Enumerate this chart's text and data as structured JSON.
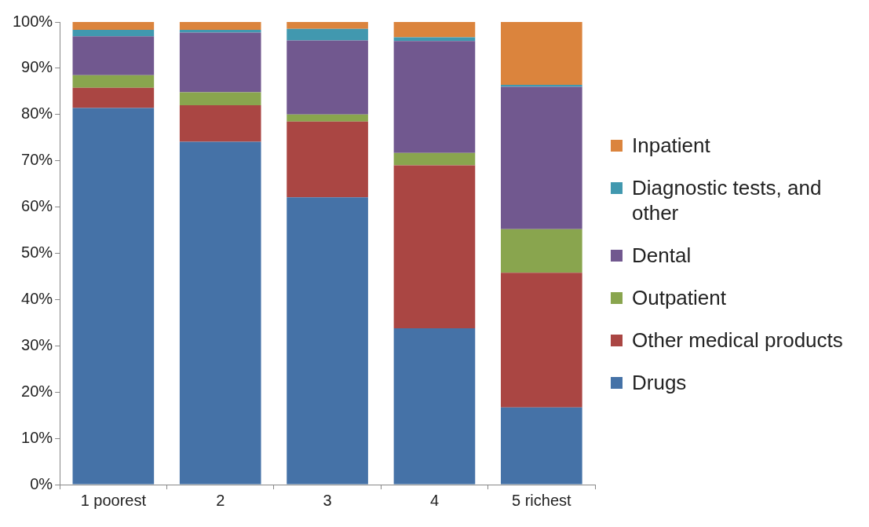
{
  "chart_data": {
    "type": "bar",
    "stacked": true,
    "categories": [
      "1 poorest",
      "2",
      "3",
      "4",
      "5 richest"
    ],
    "series": [
      {
        "name": "Drugs",
        "color": "#4572a7",
        "values": [
          81.4,
          74.1,
          62.1,
          33.8,
          16.7
        ]
      },
      {
        "name": "Other medical products",
        "color": "#aa4643",
        "values": [
          4.4,
          7.9,
          16.4,
          35.2,
          29.1
        ]
      },
      {
        "name": "Outpatient",
        "color": "#89a54e",
        "values": [
          2.7,
          2.8,
          1.5,
          2.7,
          9.4
        ]
      },
      {
        "name": "Dental",
        "color": "#71588f",
        "values": [
          8.4,
          12.9,
          16.0,
          24.2,
          30.8
        ]
      },
      {
        "name": "Diagnostic tests, and other",
        "color": "#4198af",
        "values": [
          1.4,
          0.6,
          2.5,
          0.8,
          0.4
        ]
      },
      {
        "name": "Inpatient",
        "color": "#db843d",
        "values": [
          1.7,
          1.7,
          1.5,
          3.3,
          13.6
        ]
      }
    ],
    "ylim": [
      0,
      100
    ],
    "yticks": [
      {
        "value": 0,
        "label": "0%"
      },
      {
        "value": 10,
        "label": "10%"
      },
      {
        "value": 20,
        "label": "20%"
      },
      {
        "value": 30,
        "label": "30%"
      },
      {
        "value": 40,
        "label": "40%"
      },
      {
        "value": 50,
        "label": "50%"
      },
      {
        "value": 60,
        "label": "60%"
      },
      {
        "value": 70,
        "label": "70%"
      },
      {
        "value": 80,
        "label": "80%"
      },
      {
        "value": 90,
        "label": "90%"
      },
      {
        "value": 100,
        "label": "100%"
      }
    ],
    "grid": false,
    "legend": "right"
  }
}
